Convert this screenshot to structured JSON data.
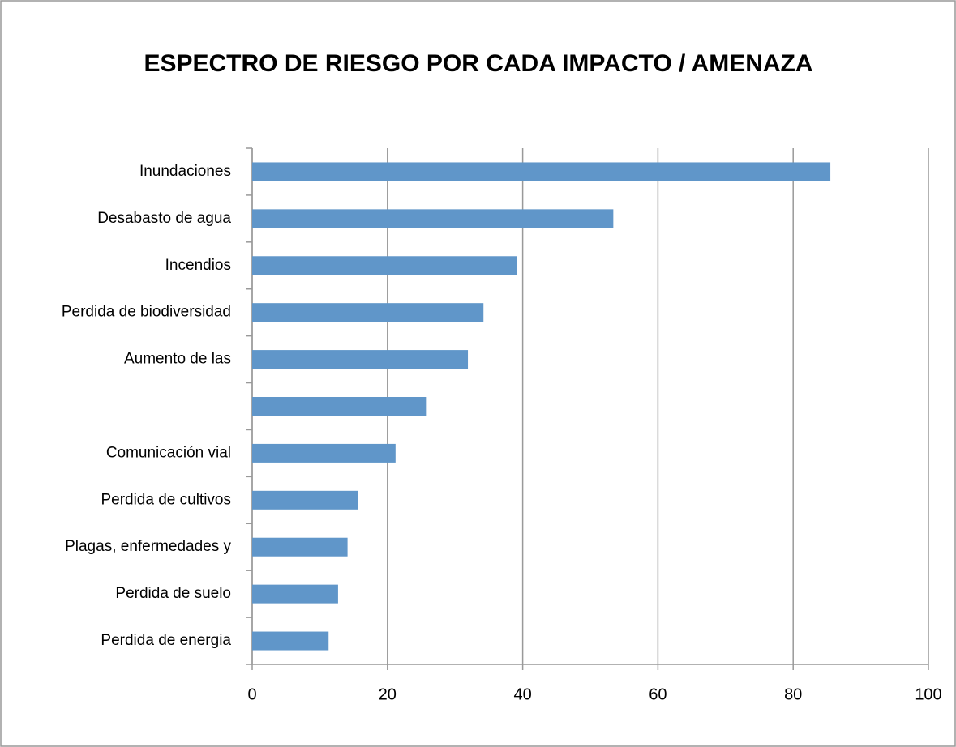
{
  "chart_data": {
    "type": "bar",
    "orientation": "horizontal",
    "title": "ESPECTRO DE RIESGO POR CADA IMPACTO / AMENAZA",
    "categories": [
      "Inundaciones",
      "Desabasto de agua",
      "Incendios",
      "Perdida de biodiversidad",
      "Aumento de las",
      null,
      "Comunicación vial",
      "Perdida de cultivos",
      "Plagas, enfermedades y",
      "Perdida de suelo",
      "Perdida de energia"
    ],
    "values": [
      85.5,
      53.4,
      39.1,
      34.2,
      31.9,
      25.7,
      21.2,
      15.6,
      14.1,
      12.7,
      11.3
    ],
    "color": "#6096c9",
    "xlim": [
      0,
      100
    ],
    "xticks": [
      0,
      20,
      40,
      60,
      80,
      100
    ],
    "grid": true
  }
}
